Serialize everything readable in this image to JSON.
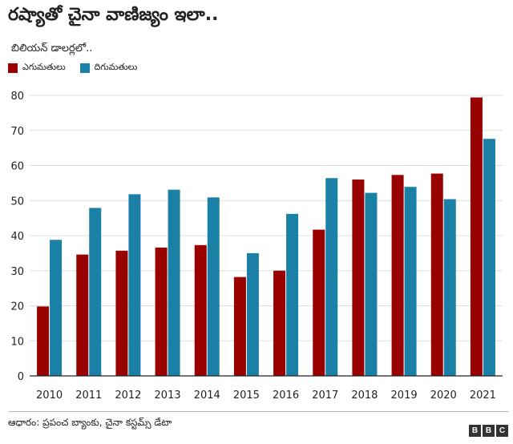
{
  "header": {
    "title": "రష్యాతో చైనా వాణిజ్యం ఇలా..",
    "subtitle": "బిలియన్ డాలర్లలో.."
  },
  "colors": {
    "exports": "#990000",
    "imports": "#1a80a6",
    "grid": "#dddddd",
    "axis": "#222222"
  },
  "chart_data": {
    "type": "bar",
    "title": "రష్యాతో చైనా వాణిజ్యం ఇలా..",
    "ylabel": "బిలియన్ డాలర్లలో..",
    "categories": [
      "2010",
      "2011",
      "2012",
      "2013",
      "2014",
      "2015",
      "2016",
      "2017",
      "2018",
      "2019",
      "2020",
      "2021"
    ],
    "series": [
      {
        "name": "ఎగుమతులు",
        "values": [
          19.8,
          34.6,
          35.7,
          36.6,
          37.3,
          28.2,
          30.0,
          41.7,
          56.0,
          57.3,
          57.7,
          79.4
        ]
      },
      {
        "name": "దిగుమతులు",
        "values": [
          38.8,
          47.9,
          51.8,
          53.1,
          50.9,
          35.0,
          46.2,
          56.4,
          52.2,
          53.9,
          50.4,
          67.6
        ]
      }
    ],
    "ylim": [
      0,
      80
    ],
    "yticks": [
      0,
      10,
      20,
      30,
      40,
      50,
      60,
      70,
      80
    ],
    "grid": true,
    "legend": "top-left"
  },
  "source": "ఆధారం: ప్రపంచ బ్యాంకు, చైనా కస్టమ్స్ డేటా",
  "logo": {
    "letters": [
      "B",
      "B",
      "C"
    ]
  }
}
